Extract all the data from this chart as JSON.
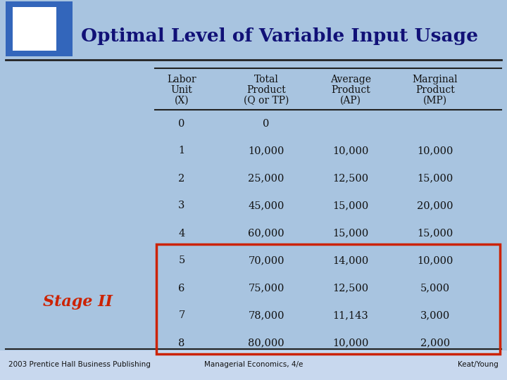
{
  "title": "Optimal Level of Variable Input Usage",
  "bg_color": "#a8c4e0",
  "header_row_line1": [
    "Labor",
    "Total",
    "Average",
    "Marginal"
  ],
  "header_row_line2": [
    "Unit",
    "Product",
    "Product",
    "Product"
  ],
  "header_row_line3": [
    "(X)",
    "(Q or TP)",
    "(AP)",
    "(MP)"
  ],
  "data_rows": [
    [
      "0",
      "0",
      "",
      ""
    ],
    [
      "1",
      "10,000",
      "10,000",
      "10,000"
    ],
    [
      "2",
      "25,000",
      "12,500",
      "15,000"
    ],
    [
      "3",
      "45,000",
      "15,000",
      "20,000"
    ],
    [
      "4",
      "60,000",
      "15,000",
      "15,000"
    ],
    [
      "5",
      "70,000",
      "14,000",
      "10,000"
    ],
    [
      "6",
      "75,000",
      "12,500",
      "5,000"
    ],
    [
      "7",
      "78,000",
      "11,143",
      "3,000"
    ],
    [
      "8",
      "80,000",
      "10,000",
      "2,000"
    ]
  ],
  "stage_label": "Stage II",
  "stage_color": "#cc2200",
  "footer_left": "2003 Prentice Hall Business Publishing",
  "footer_mid": "Managerial Economics, 4/e",
  "footer_right": "Keat/Young",
  "title_color": "#111177",
  "text_color": "#111111",
  "box_color": "#cc2200",
  "line_color": "#222222",
  "title_square_dark": "#3366bb",
  "title_square_light": "#ffffff",
  "footer_bg": "#c8d8ee"
}
